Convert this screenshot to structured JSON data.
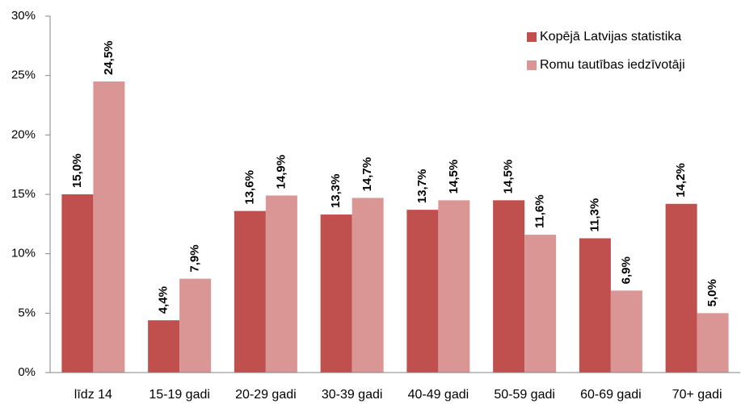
{
  "chart_data": {
    "type": "bar",
    "categories": [
      "līdz 14",
      "15-19 gadi",
      "20-29 gadi",
      "30-39 gadi",
      "40-49 gadi",
      "50-59 gadi",
      "60-69 gadi",
      "70+ gadi"
    ],
    "series": [
      {
        "name": "Kopējā Latvijas statistika",
        "color": "#c0504d",
        "values": [
          15.0,
          4.4,
          13.6,
          13.3,
          13.7,
          14.5,
          11.3,
          14.2
        ],
        "value_labels": [
          "15,0%",
          "4,4%",
          "13,6%",
          "13,3%",
          "13,7%",
          "14,5%",
          "11,3%",
          "14,2%"
        ]
      },
      {
        "name": "Romu tautības iedzīvotāji",
        "color": "#d99694",
        "values": [
          24.5,
          7.9,
          14.9,
          14.7,
          14.5,
          11.6,
          6.9,
          5.0
        ],
        "value_labels": [
          "24,5%",
          "7,9%",
          "14,9%",
          "14,7%",
          "14,5%",
          "11,6%",
          "6,9%",
          "5,0%"
        ]
      }
    ],
    "ylim": [
      0,
      30
    ],
    "yticks": [
      {
        "value": 0,
        "label": "0%"
      },
      {
        "value": 5,
        "label": "5%"
      },
      {
        "value": 10,
        "label": "10%"
      },
      {
        "value": 15,
        "label": "15%"
      },
      {
        "value": 20,
        "label": "20%"
      },
      {
        "value": 25,
        "label": "25%"
      },
      {
        "value": 30,
        "label": "30%"
      }
    ],
    "grid": false,
    "legend": "upper right"
  }
}
